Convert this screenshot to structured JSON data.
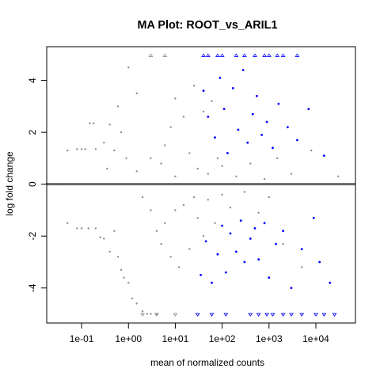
{
  "chart_data": {
    "type": "scatter",
    "title": "MA Plot: ROOT_vs_ARIL1",
    "xlabel": "mean of normalized counts",
    "ylabel": "log fold change",
    "xscale": "log10",
    "xlim": [
      0.018,
      70000
    ],
    "ylim": [
      -5.35,
      5.3
    ],
    "x_ticks": [
      0.1,
      1,
      10,
      100,
      1000,
      10000
    ],
    "x_tick_labels": [
      "1e-01",
      "1e+00",
      "1e+01",
      "1e+02",
      "1e+03",
      "1e+04"
    ],
    "y_ticks": [
      -4,
      -2,
      0,
      2,
      4
    ],
    "y_tick_labels": [
      "-4",
      "-2",
      "0",
      "2",
      "4"
    ],
    "reference_line": {
      "y": 0,
      "color": "#666666"
    },
    "grid": false,
    "colors": {
      "not_significant": "#8c8c8c",
      "significant": "#0000ff",
      "outline": "#000000"
    },
    "series": [
      {
        "points": [
          [
            0.018,
            0.02
          ],
          [
            0.022,
            0.0
          ],
          [
            0.03,
            0.0
          ],
          [
            0.04,
            -0.01
          ],
          [
            0.05,
            1.3
          ],
          [
            0.05,
            -1.5
          ],
          [
            0.06,
            0.0
          ],
          [
            0.08,
            1.35
          ],
          [
            0.08,
            -1.7
          ],
          [
            0.1,
            1.35
          ],
          [
            0.1,
            -1.7
          ],
          [
            0.12,
            1.35
          ],
          [
            0.14,
            -1.7
          ],
          [
            0.15,
            2.35
          ],
          [
            0.18,
            2.35
          ],
          [
            0.2,
            1.35
          ],
          [
            0.2,
            -1.7
          ],
          [
            0.25,
            -2.05
          ],
          [
            0.3,
            1.6
          ],
          [
            0.3,
            -2.1
          ],
          [
            0.35,
            0.6
          ],
          [
            0.4,
            2.3
          ],
          [
            0.4,
            -2.6
          ],
          [
            0.5,
            1.3
          ],
          [
            0.5,
            -1.8
          ],
          [
            0.6,
            3.0
          ],
          [
            0.6,
            -2.8
          ],
          [
            0.7,
            2.0
          ],
          [
            0.7,
            -3.3
          ],
          [
            0.8,
            -3.6
          ],
          [
            0.9,
            1.0
          ],
          [
            1.0,
            -3.8
          ],
          [
            1.0,
            4.5
          ],
          [
            1.2,
            -4.4
          ],
          [
            1.5,
            3.5
          ],
          [
            1.5,
            -4.6
          ],
          [
            2.0,
            -4.9
          ],
          [
            2.5,
            -5.0
          ],
          [
            3.0,
            -5.0
          ],
          [
            4.0,
            -5.0
          ],
          [
            1.5,
            0.5
          ],
          [
            2.0,
            -0.5
          ],
          [
            3.0,
            1.0
          ],
          [
            3.0,
            -1.0
          ],
          [
            4.0,
            -1.8
          ],
          [
            5.0,
            0.8
          ],
          [
            5.0,
            -2.3
          ],
          [
            6.0,
            1.5
          ],
          [
            6.0,
            -1.5
          ],
          [
            8.0,
            2.2
          ],
          [
            8.0,
            -2.8
          ],
          [
            10.0,
            3.3
          ],
          [
            10.0,
            0.3
          ],
          [
            10.0,
            -1.0
          ],
          [
            12.0,
            -3.2
          ],
          [
            15.0,
            2.6
          ],
          [
            15.0,
            -0.8
          ],
          [
            20.0,
            1.2
          ],
          [
            20.0,
            -2.5
          ],
          [
            25.0,
            3.8
          ],
          [
            25.0,
            -0.5
          ],
          [
            30.0,
            0.6
          ],
          [
            30.0,
            -1.3
          ],
          [
            40.0,
            2.8
          ],
          [
            40.0,
            -2.0
          ],
          [
            50.0,
            0.4
          ],
          [
            50.0,
            -0.6
          ],
          [
            60.0,
            3.2
          ],
          [
            70.0,
            -1.5
          ],
          [
            80.0,
            1.0
          ],
          [
            100.0,
            -0.4
          ],
          [
            100.0,
            0.7
          ],
          [
            150.0,
            -0.9
          ],
          [
            200.0,
            0.3
          ],
          [
            300.0,
            -0.3
          ],
          [
            400.0,
            0.8
          ],
          [
            600.0,
            -1.1
          ],
          [
            800.0,
            0.2
          ],
          [
            1000.0,
            -0.5
          ],
          [
            1500.0,
            1.0
          ],
          [
            2000.0,
            -2.3
          ],
          [
            3000.0,
            0.4
          ],
          [
            5000.0,
            -3.2
          ],
          [
            8000.0,
            1.3
          ],
          [
            30000.0,
            0.3
          ]
        ]
      },
      {
        "points": [
          [
            35.0,
            -3.5
          ],
          [
            40.0,
            3.6
          ],
          [
            45.0,
            -2.2
          ],
          [
            50.0,
            2.6
          ],
          [
            60.0,
            -3.8
          ],
          [
            70.0,
            1.8
          ],
          [
            80.0,
            -2.7
          ],
          [
            90.0,
            4.1
          ],
          [
            100.0,
            -1.6
          ],
          [
            110.0,
            2.9
          ],
          [
            120.0,
            -3.4
          ],
          [
            130.0,
            1.2
          ],
          [
            150.0,
            -1.9
          ],
          [
            170.0,
            3.7
          ],
          [
            200.0,
            -2.6
          ],
          [
            220.0,
            2.1
          ],
          [
            250.0,
            -1.4
          ],
          [
            280.0,
            4.4
          ],
          [
            300.0,
            -3.0
          ],
          [
            350.0,
            1.6
          ],
          [
            400.0,
            -2.1
          ],
          [
            450.0,
            2.7
          ],
          [
            500.0,
            -1.7
          ],
          [
            550.0,
            3.4
          ],
          [
            600.0,
            -2.9
          ],
          [
            700.0,
            1.9
          ],
          [
            800.0,
            -1.5
          ],
          [
            900.0,
            2.4
          ],
          [
            1000.0,
            -3.6
          ],
          [
            1200.0,
            1.4
          ],
          [
            1400.0,
            -2.3
          ],
          [
            1600.0,
            3.1
          ],
          [
            2000.0,
            -1.8
          ],
          [
            2500.0,
            2.2
          ],
          [
            3000.0,
            -4.0
          ],
          [
            4000.0,
            1.7
          ],
          [
            5000.0,
            -2.5
          ],
          [
            7000.0,
            2.9
          ],
          [
            9000.0,
            -1.3
          ],
          [
            12000.0,
            -3.0
          ],
          [
            15000.0,
            1.1
          ],
          [
            20000.0,
            -3.8
          ]
        ]
      }
    ],
    "clipped_points": {
      "top": [
        {
          "x": 3,
          "sig": false
        },
        {
          "x": 6,
          "sig": false
        },
        {
          "x": 40,
          "sig": true
        },
        {
          "x": 50,
          "sig": true
        },
        {
          "x": 80,
          "sig": true
        },
        {
          "x": 100,
          "sig": true
        },
        {
          "x": 200,
          "sig": true
        },
        {
          "x": 300,
          "sig": true
        },
        {
          "x": 500,
          "sig": true
        },
        {
          "x": 800,
          "sig": true
        },
        {
          "x": 1000,
          "sig": true
        },
        {
          "x": 1500,
          "sig": true
        },
        {
          "x": 2000,
          "sig": true
        },
        {
          "x": 4000,
          "sig": true
        }
      ],
      "bottom": [
        {
          "x": 2,
          "sig": false
        },
        {
          "x": 4,
          "sig": false
        },
        {
          "x": 10,
          "sig": false
        },
        {
          "x": 30,
          "sig": true
        },
        {
          "x": 60,
          "sig": true
        },
        {
          "x": 120,
          "sig": true
        },
        {
          "x": 400,
          "sig": true
        },
        {
          "x": 600,
          "sig": true
        },
        {
          "x": 900,
          "sig": true
        },
        {
          "x": 1200,
          "sig": true
        },
        {
          "x": 2000,
          "sig": true
        },
        {
          "x": 3000,
          "sig": true
        },
        {
          "x": 5000,
          "sig": true
        },
        {
          "x": 10000,
          "sig": true
        },
        {
          "x": 15000,
          "sig": true
        },
        {
          "x": 25000,
          "sig": true
        }
      ]
    }
  }
}
